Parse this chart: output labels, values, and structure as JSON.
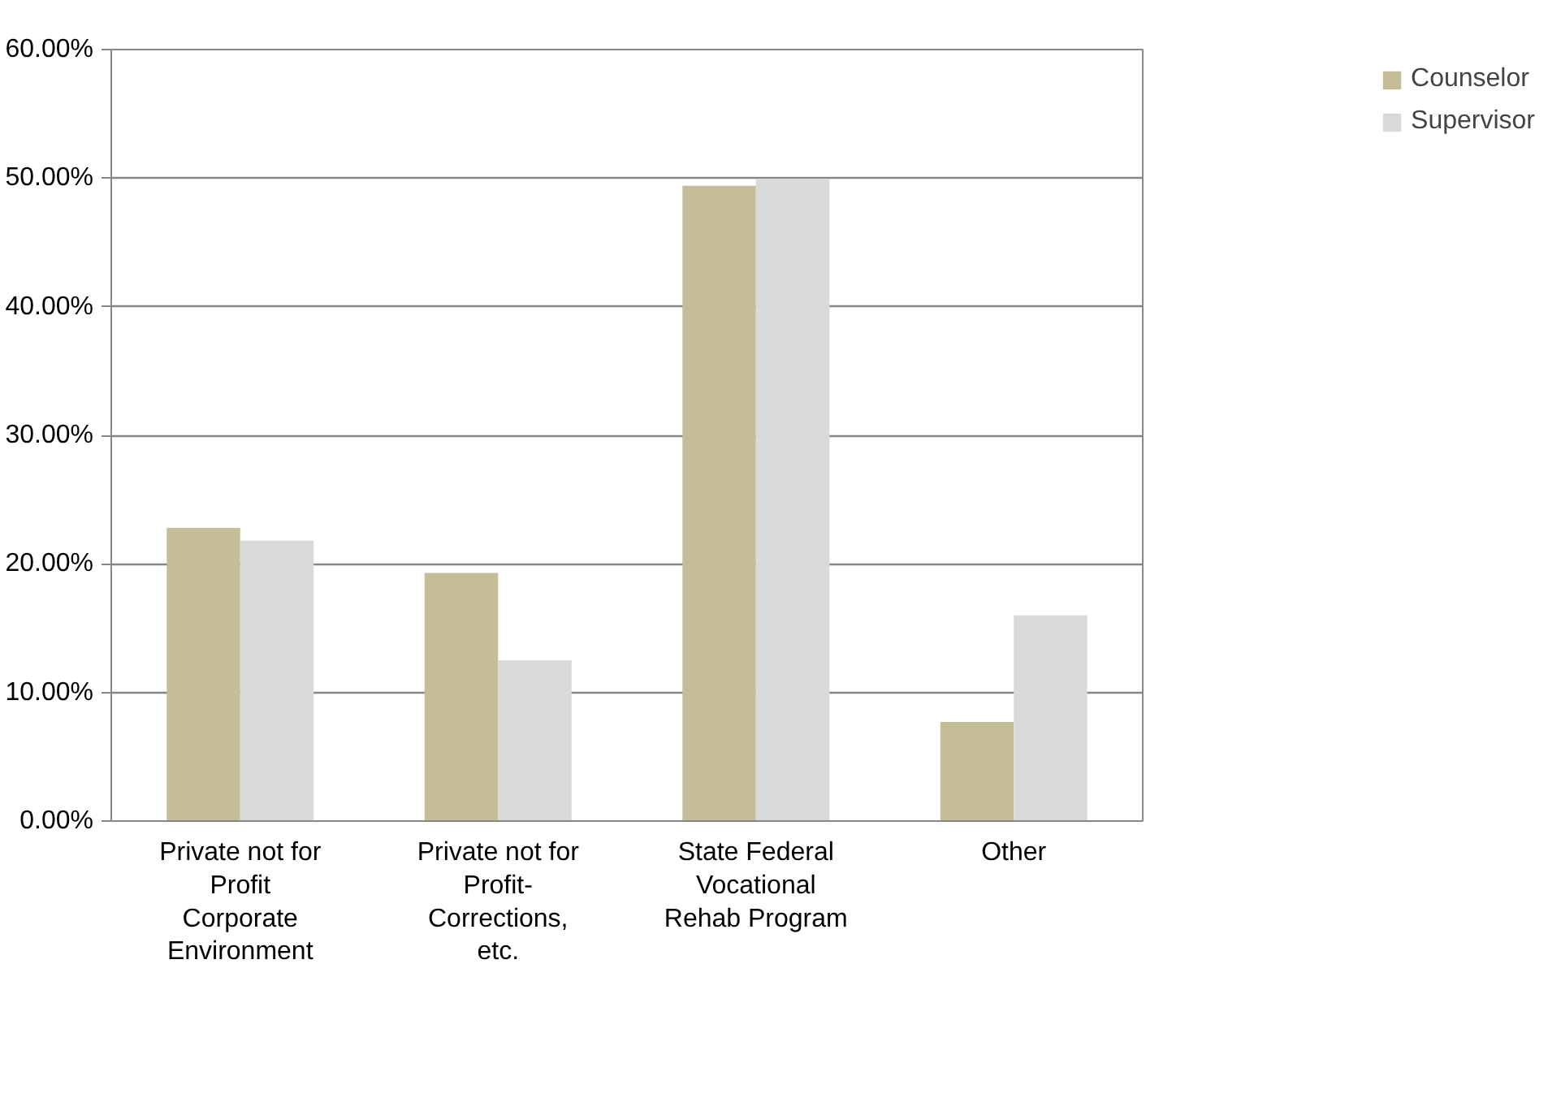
{
  "chart_data": {
    "type": "bar",
    "categories": [
      "Private not for Profit Corporate Environment",
      "Private not for Profit-Corrections, etc.",
      "State Federal Vocational Rehab Program",
      "Other"
    ],
    "series": [
      {
        "name": "Counselor",
        "color": "#c4bd97",
        "values": [
          22.8,
          19.3,
          49.4,
          7.7
        ]
      },
      {
        "name": "Supervisor",
        "color": "#d9d9d9",
        "values": [
          21.8,
          12.5,
          49.9,
          16.0
        ]
      }
    ],
    "ylim": [
      0,
      60
    ],
    "yticks": [
      {
        "value": 0,
        "label": "0.00%"
      },
      {
        "value": 10,
        "label": "10.00%"
      },
      {
        "value": 20,
        "label": "20.00%"
      },
      {
        "value": 30,
        "label": "30.00%"
      },
      {
        "value": 40,
        "label": "40.00%"
      },
      {
        "value": 50,
        "label": "50.00%"
      },
      {
        "value": 60,
        "label": "60.00%"
      }
    ],
    "grid": "y",
    "legend": "right"
  }
}
